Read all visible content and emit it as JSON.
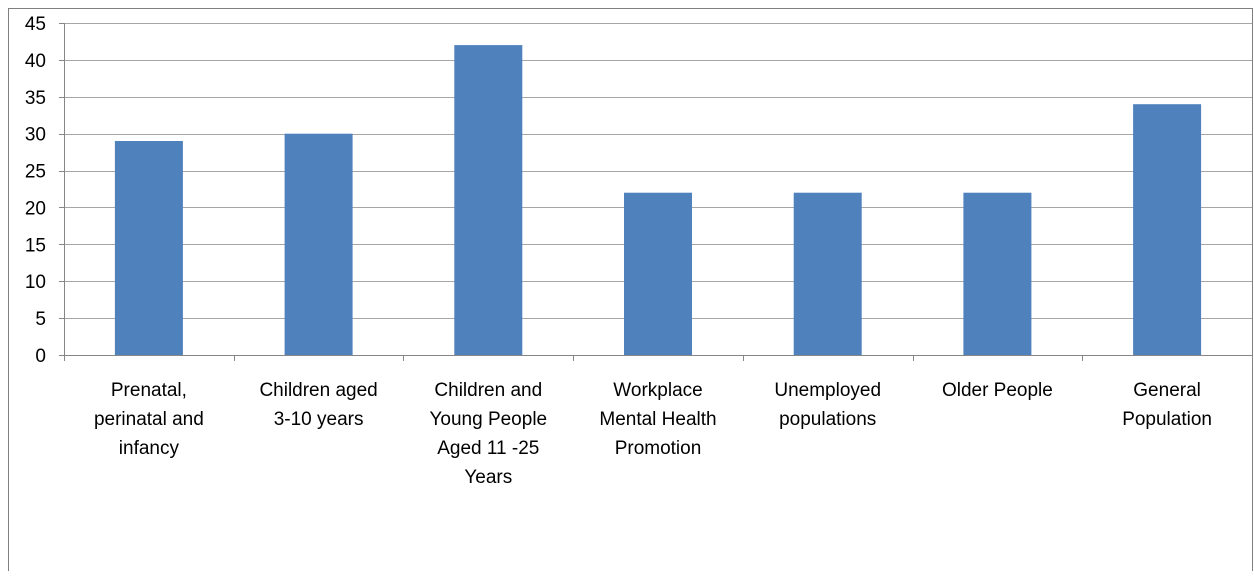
{
  "chart_data": {
    "type": "bar",
    "title": "",
    "xlabel": "",
    "ylabel": "",
    "ylim": [
      0,
      45
    ],
    "y_ticks": [
      0,
      5,
      10,
      15,
      20,
      25,
      30,
      35,
      40,
      45
    ],
    "grid": true,
    "legend": "none",
    "categories": [
      [
        "Prenatal,",
        "perinatal and",
        "infancy"
      ],
      [
        "Children aged",
        "3-10 years"
      ],
      [
        "Children and",
        "Young People",
        "Aged 11 -25",
        "Years"
      ],
      [
        "Workplace",
        "Mental Health",
        "Promotion"
      ],
      [
        "Unemployed",
        "populations"
      ],
      [
        "Older People"
      ],
      [
        "General",
        "Population"
      ]
    ],
    "values": [
      29,
      30,
      42,
      22,
      22,
      22,
      34
    ],
    "colors": {
      "bar": "#4f81bd",
      "grid": "#a6a6a6",
      "axis": "#868686",
      "border": "#7f7f7f"
    }
  }
}
